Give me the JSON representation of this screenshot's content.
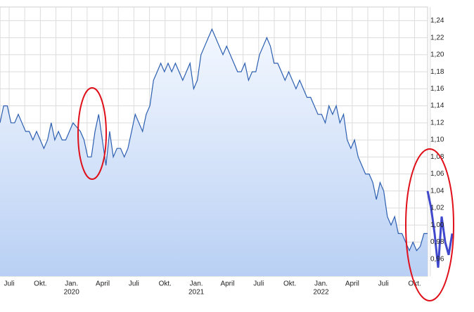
{
  "chart_data": {
    "type": "line",
    "color": "#2c5fb0",
    "values": [
      1.12,
      1.14,
      1.14,
      1.12,
      1.12,
      1.13,
      1.12,
      1.11,
      1.11,
      1.1,
      1.11,
      1.1,
      1.09,
      1.1,
      1.12,
      1.1,
      1.11,
      1.1,
      1.1,
      1.11,
      1.12,
      1.115,
      1.11,
      1.1,
      1.08,
      1.08,
      1.11,
      1.13,
      1.1,
      1.07,
      1.11,
      1.08,
      1.09,
      1.09,
      1.08,
      1.09,
      1.11,
      1.13,
      1.12,
      1.11,
      1.13,
      1.14,
      1.17,
      1.18,
      1.19,
      1.18,
      1.19,
      1.18,
      1.19,
      1.18,
      1.17,
      1.18,
      1.19,
      1.16,
      1.17,
      1.2,
      1.21,
      1.22,
      1.23,
      1.22,
      1.21,
      1.2,
      1.21,
      1.2,
      1.19,
      1.18,
      1.18,
      1.19,
      1.17,
      1.18,
      1.18,
      1.2,
      1.21,
      1.22,
      1.21,
      1.19,
      1.19,
      1.18,
      1.17,
      1.18,
      1.17,
      1.16,
      1.17,
      1.16,
      1.15,
      1.15,
      1.14,
      1.13,
      1.13,
      1.12,
      1.14,
      1.13,
      1.14,
      1.12,
      1.13,
      1.1,
      1.09,
      1.1,
      1.08,
      1.07,
      1.06,
      1.06,
      1.05,
      1.03,
      1.05,
      1.04,
      1.01,
      1.0,
      1.01,
      0.99,
      0.99,
      0.98,
      0.97,
      0.98,
      0.97,
      0.975,
      0.99,
      0.99
    ],
    "overlay": {
      "color": "#3f48cc",
      "values": [
        1.04,
        1.02,
        0.99,
        0.95,
        1.01,
        0.98,
        0.965,
        0.99
      ]
    },
    "ylim": [
      0.94,
      1.256
    ],
    "yticks": [
      {
        "value": 0.96,
        "label": "0,96"
      },
      {
        "value": 0.98,
        "label": "0,98"
      },
      {
        "value": 1.0,
        "label": "1,00"
      },
      {
        "value": 1.02,
        "label": "1,02"
      },
      {
        "value": 1.04,
        "label": "1,04"
      },
      {
        "value": 1.06,
        "label": "1,06"
      },
      {
        "value": 1.08,
        "label": "1,08"
      },
      {
        "value": 1.1,
        "label": "1,10"
      },
      {
        "value": 1.12,
        "label": "1,12"
      },
      {
        "value": 1.14,
        "label": "1,14"
      },
      {
        "value": 1.16,
        "label": "1,16"
      },
      {
        "value": 1.18,
        "label": "1,18"
      },
      {
        "value": 1.2,
        "label": "1,20"
      },
      {
        "value": 1.22,
        "label": "1,22"
      },
      {
        "value": 1.24,
        "label": "1,24"
      }
    ],
    "xlabels": [
      {
        "label": "Juli"
      },
      {
        "label": "Okt."
      },
      {
        "label": "Jan.",
        "year": "2020"
      },
      {
        "label": "April"
      },
      {
        "label": "Juli"
      },
      {
        "label": "Okt."
      },
      {
        "label": "Jan.",
        "year": "2021"
      },
      {
        "label": "April"
      },
      {
        "label": "Juli"
      },
      {
        "label": "Okt."
      },
      {
        "label": "Jan.",
        "year": "2022"
      },
      {
        "label": "April"
      },
      {
        "label": "Juli"
      },
      {
        "label": "Okt."
      }
    ],
    "grid": true
  }
}
